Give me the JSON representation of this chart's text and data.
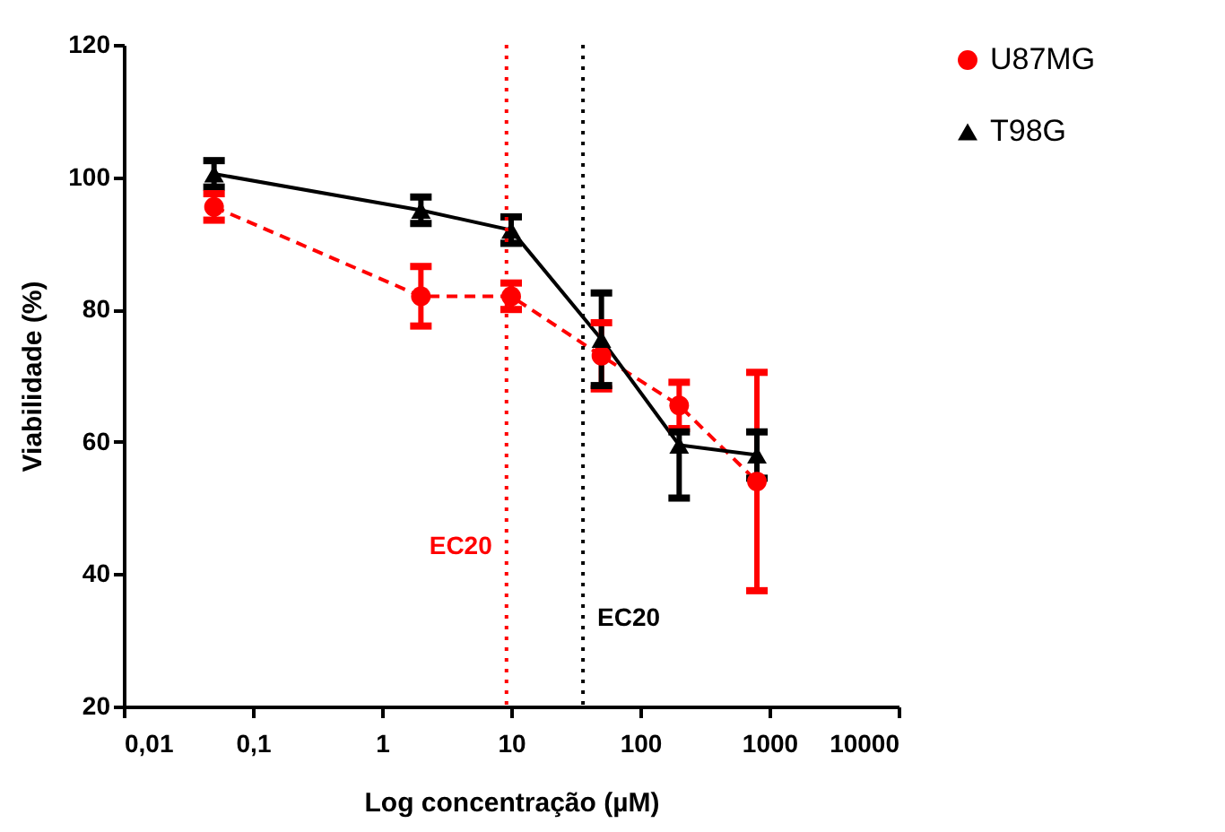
{
  "chart_data": {
    "type": "line",
    "xlabel": "Log concentração (µM)",
    "ylabel": "Viabilidade (%)",
    "x": [
      0.05,
      2,
      10,
      50,
      200,
      800
    ],
    "series": [
      {
        "name": "U87MG",
        "color": "#ff0000",
        "marker": "circle",
        "line_style": "dashed",
        "values": [
          95.5,
          82,
          82,
          73,
          65.5,
          54
        ],
        "errors": [
          2,
          4.5,
          2,
          5,
          3.5,
          16.5
        ]
      },
      {
        "name": "T98G",
        "color": "#000000",
        "marker": "triangle",
        "line_style": "solid",
        "values": [
          100.5,
          95,
          92,
          75.5,
          59.5,
          58
        ],
        "errors": [
          2,
          2,
          2,
          7,
          [
            51.5,
            61.5
          ],
          3.5
        ]
      }
    ],
    "log": "x",
    "xlim": [
      0.01,
      10000
    ],
    "xticks": [
      {
        "value": 0.01,
        "label": "0,01"
      },
      {
        "value": 0.1,
        "label": "0,1"
      },
      1,
      10,
      100,
      1000,
      10000
    ],
    "ylim": [
      20,
      120
    ],
    "yticks": [
      20,
      40,
      60,
      80,
      100,
      120
    ],
    "grid": false,
    "legend": "top right",
    "ref_lines": [
      {
        "axis": "x",
        "value": 9.2,
        "label": "EC20",
        "color": "#ff0000",
        "line_style": "dotted"
      },
      {
        "axis": "x",
        "value": 36,
        "label": "EC20",
        "color": "#000000",
        "line_style": "dotted"
      }
    ]
  }
}
